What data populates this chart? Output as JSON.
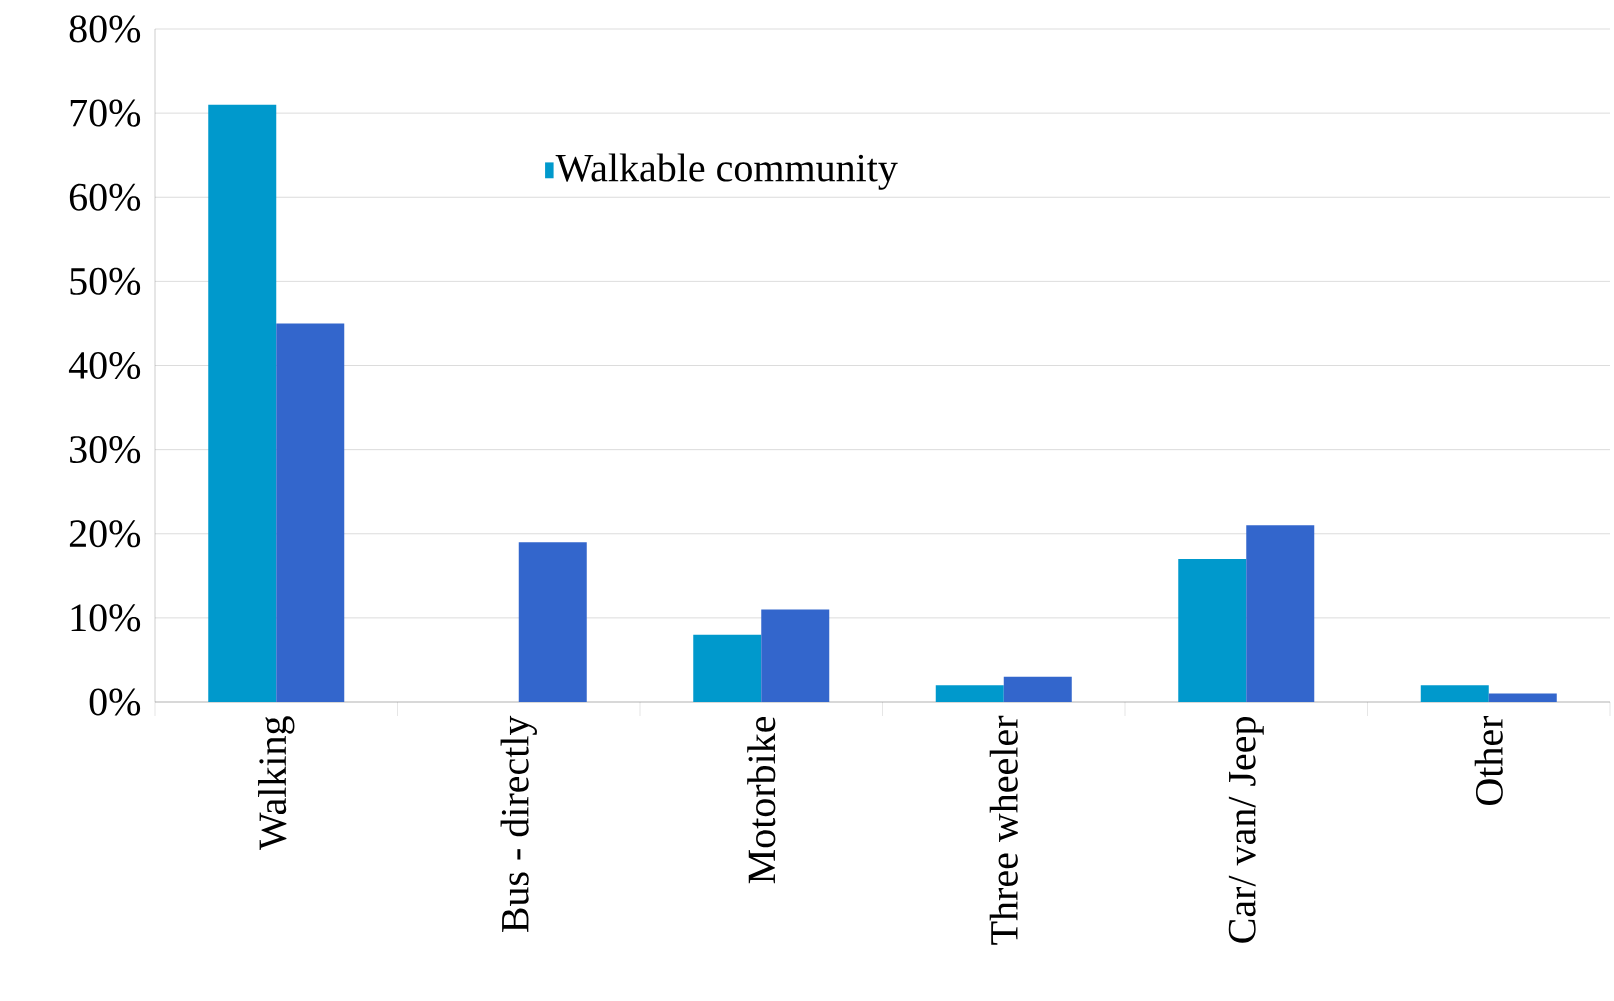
{
  "chart_data": {
    "type": "bar",
    "categories": [
      "Walking",
      "Bus - directly",
      "Motorbike",
      "Three wheeler",
      "Car/ van/ Jeep",
      "Other"
    ],
    "series": [
      {
        "name": "Walkable community",
        "color": "#0099cc",
        "values": [
          71,
          0,
          8,
          2,
          17,
          2
        ]
      },
      {
        "color": "#3366cc",
        "values": [
          45,
          19,
          11,
          3,
          21,
          1
        ]
      }
    ],
    "ylim": [
      0,
      80
    ],
    "yticks": [
      {
        "value": 0,
        "label": "0%"
      },
      {
        "value": 10,
        "label": "10%"
      },
      {
        "value": 20,
        "label": "20%"
      },
      {
        "value": 30,
        "label": "30%"
      },
      {
        "value": 40,
        "label": "40%"
      },
      {
        "value": 50,
        "label": "50%"
      },
      {
        "value": 60,
        "label": "60%"
      },
      {
        "value": 70,
        "label": "70%"
      },
      {
        "value": 80,
        "label": "80%"
      }
    ],
    "grid": "y",
    "legend": "top"
  }
}
